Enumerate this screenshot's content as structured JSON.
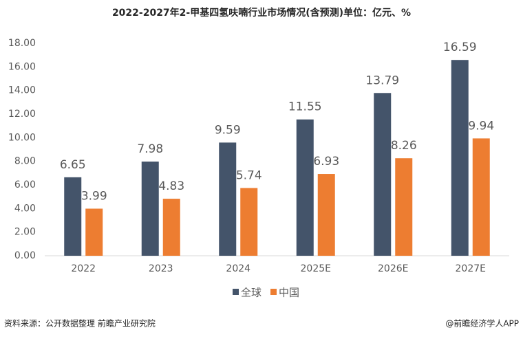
{
  "chart_data": {
    "type": "bar",
    "title": "2022-2027年2-甲基四氢呋喃行业市场情况(含预测)单位：亿元、%",
    "categories": [
      "2022",
      "2023",
      "2024",
      "2025E",
      "2026E",
      "2027E"
    ],
    "series": [
      {
        "name": "全球",
        "color": "#44546a",
        "values": [
          6.65,
          7.98,
          9.59,
          11.55,
          13.79,
          16.59
        ]
      },
      {
        "name": "中国",
        "color": "#ed7d31",
        "values": [
          3.99,
          4.83,
          5.74,
          6.93,
          8.26,
          9.94
        ]
      }
    ],
    "ylim": [
      0,
      18
    ],
    "yticks": [
      {
        "value": 0,
        "label": "0.00"
      },
      {
        "value": 2,
        "label": "2.00"
      },
      {
        "value": 4,
        "label": "4.00"
      },
      {
        "value": 6,
        "label": "6.00"
      },
      {
        "value": 8,
        "label": "8.00"
      },
      {
        "value": 10,
        "label": "10.00"
      },
      {
        "value": 12,
        "label": "12.00"
      },
      {
        "value": 14,
        "label": "14.00"
      },
      {
        "value": 16,
        "label": "16.00"
      },
      {
        "value": 18,
        "label": "18.00"
      }
    ],
    "grid": false,
    "legend": "bottom",
    "source": "资料来源：公开数据整理 前瞻产业研究院",
    "credit": "@前瞻经济学人APP"
  }
}
